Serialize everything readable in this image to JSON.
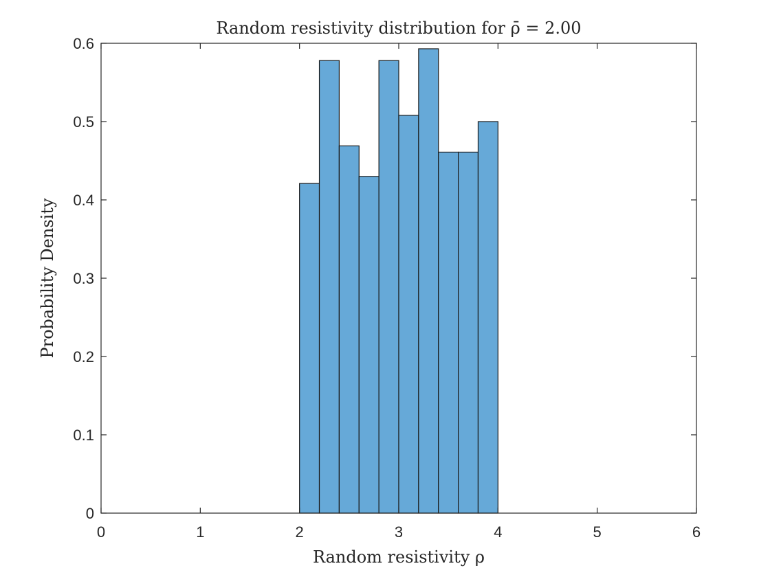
{
  "chart_data": {
    "type": "bar",
    "title": "Random resistivity distribution for ρ̄ = 2.00",
    "xlabel": "Random resistivity ρ",
    "ylabel": "Probability Density",
    "xlim": [
      0,
      6
    ],
    "ylim": [
      0,
      0.6
    ],
    "xticks": [
      0,
      1,
      2,
      3,
      4,
      5,
      6
    ],
    "yticks": [
      0,
      0.1,
      0.2,
      0.3,
      0.4,
      0.5,
      0.6
    ],
    "xtick_labels": [
      "0",
      "1",
      "2",
      "3",
      "4",
      "5",
      "6"
    ],
    "ytick_labels": [
      "0",
      "0.1",
      "0.2",
      "0.3",
      "0.4",
      "0.5",
      "0.6"
    ],
    "bin_edges": [
      2.0,
      2.2,
      2.4,
      2.6,
      2.8,
      3.0,
      3.2,
      3.4,
      3.6,
      3.8,
      4.0
    ],
    "values": [
      0.421,
      0.578,
      0.469,
      0.43,
      0.578,
      0.508,
      0.593,
      0.461,
      0.461,
      0.5
    ],
    "bar_color": "#66a9d8",
    "edge_color": "#1a1a1a",
    "grid": false,
    "box": true
  }
}
